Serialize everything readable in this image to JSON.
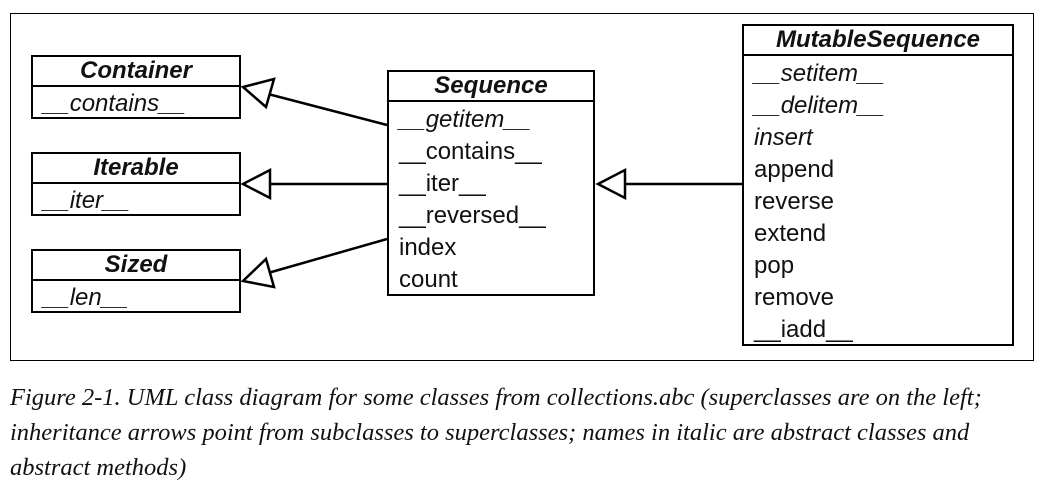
{
  "classes": {
    "container": {
      "name": "Container",
      "members": [
        {
          "label": "__contains__",
          "abstract": true
        }
      ]
    },
    "iterable": {
      "name": "Iterable",
      "members": [
        {
          "label": "__iter__",
          "abstract": true
        }
      ]
    },
    "sized": {
      "name": "Sized",
      "members": [
        {
          "label": "__len__",
          "abstract": true
        }
      ]
    },
    "sequence": {
      "name": "Sequence",
      "members": [
        {
          "label": "__getitem__",
          "abstract": true
        },
        {
          "label": "__contains__",
          "abstract": false
        },
        {
          "label": "__iter__",
          "abstract": false
        },
        {
          "label": "__reversed__",
          "abstract": false
        },
        {
          "label": "index",
          "abstract": false
        },
        {
          "label": "count",
          "abstract": false
        }
      ]
    },
    "mutable_sequence": {
      "name": "MutableSequence",
      "members": [
        {
          "label": "__setitem__",
          "abstract": true
        },
        {
          "label": "__delitem__",
          "abstract": true
        },
        {
          "label": "insert",
          "abstract": true
        },
        {
          "label": "append",
          "abstract": false
        },
        {
          "label": "reverse",
          "abstract": false
        },
        {
          "label": "extend",
          "abstract": false
        },
        {
          "label": "pop",
          "abstract": false
        },
        {
          "label": "remove",
          "abstract": false
        },
        {
          "label": "__iadd__",
          "abstract": false
        }
      ]
    }
  },
  "caption": "Figure 2-1. UML class diagram for some classes from collections.abc (superclasses are on the left; inheritance arrows point from subclasses to superclasses; names in italic are abstract classes and abstract methods)"
}
